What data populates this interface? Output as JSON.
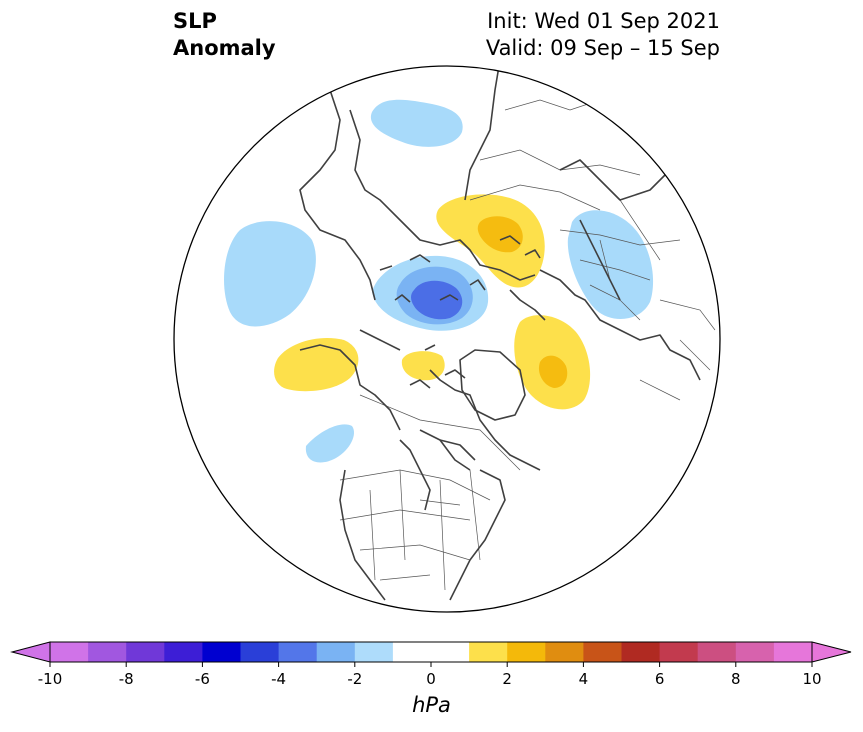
{
  "header": {
    "title_line1": "SLP",
    "title_line2": "Anomaly",
    "init_label": "Init: Wed 01 Sep 2021",
    "valid_label": "Valid: 09 Sep – 15 Sep"
  },
  "map": {
    "projection": "north-polar-stereographic",
    "variable": "sea level pressure anomaly",
    "coastline_color": "#404040",
    "border_color": "#555555",
    "anomaly_regions": [
      {
        "name": "bering-kamchatka-low",
        "value": -1,
        "color": "#a8dafa"
      },
      {
        "name": "north-pacific-low",
        "value": -1,
        "color": "#a8dafa"
      },
      {
        "name": "arctic-low",
        "value": -3,
        "color": "#4b6ee6"
      },
      {
        "name": "siberia-high",
        "value": 3,
        "color": "#f5bc10"
      },
      {
        "name": "europe-russia-low",
        "value": -1,
        "color": "#a8dafa"
      },
      {
        "name": "north-atlantic-high",
        "value": 3,
        "color": "#f5bc10"
      },
      {
        "name": "canadian-archipelago-high",
        "value": 1,
        "color": "#fde04b"
      },
      {
        "name": "gulf-of-alaska-high",
        "value": 1,
        "color": "#fde04b"
      },
      {
        "name": "northeast-pacific-low",
        "value": -1,
        "color": "#a8dafa"
      }
    ]
  },
  "colorbar": {
    "min": -10,
    "max": 10,
    "step": 1,
    "extend": "both",
    "ticks": [
      -10,
      -8,
      -6,
      -4,
      -2,
      0,
      2,
      4,
      6,
      8,
      10
    ],
    "colors": [
      "#d073e8",
      "#a157e0",
      "#7038d8",
      "#3d1ed6",
      "#0000d0",
      "#2a3fd8",
      "#5376e9",
      "#7ab3f3",
      "#aedcfb",
      "#ffffff",
      "#ffffff",
      "#fde04b",
      "#f4b90a",
      "#e08d10",
      "#c85418",
      "#b02a22",
      "#c23a4e",
      "#cc4f81",
      "#d762ad",
      "#e676da"
    ],
    "units": "hPa"
  }
}
